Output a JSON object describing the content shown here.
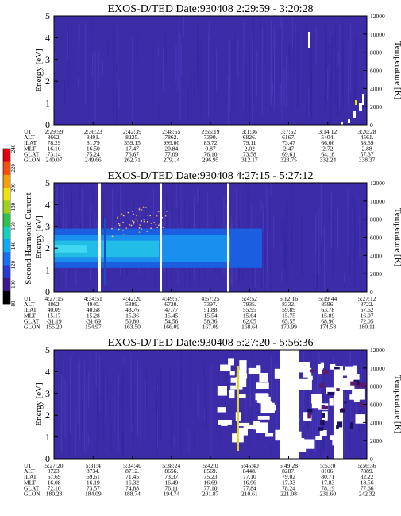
{
  "chart_data": [
    {
      "type": "heatmap",
      "title": "EXOS-D/TED   Date:930408   2:29:59 - 3:20:28",
      "ylabel": "Energy [eV]",
      "ylabel_right": "Temperature [K]",
      "ylim": [
        0,
        5
      ],
      "yticks": [
        "0",
        "1",
        "2",
        "3",
        "4",
        "5"
      ],
      "ylim_right": [
        0,
        12000
      ],
      "yticks_right": [
        "0",
        "2000",
        "4000",
        "6000",
        "8000",
        "10000",
        "12000"
      ],
      "background_color": "#3c2ca8",
      "table_rows": [
        {
          "name": "UT",
          "values": [
            "2:29:59",
            "2:36:23",
            "2:42:39",
            "2:48:55",
            "2:55:19",
            "3:1:36",
            "3:7:52",
            "3:14:12",
            "3:20:28"
          ]
        },
        {
          "name": "ALT",
          "values": [
            "8662.",
            "8491.",
            "8225.",
            "7862.",
            "7390.",
            "6826.",
            "6167.",
            "5404.",
            "4561."
          ]
        },
        {
          "name": "ILAT",
          "values": [
            "78.29",
            "81.79",
            "359.15",
            "999.00",
            "83.72",
            "79.11",
            "73.47",
            "66.66",
            "58.59"
          ]
        },
        {
          "name": "MLT",
          "values": [
            "16.10",
            "16.50",
            "17.47",
            "20.84",
            "0.87",
            "2.02",
            "2.47",
            "2.72",
            "2.88"
          ]
        },
        {
          "name": "GLAT",
          "values": [
            "73.14",
            "75.24",
            "76.67",
            "77.09",
            "76.10",
            "73.58",
            "69.61",
            "64.18",
            "57.37"
          ]
        },
        {
          "name": "GLON",
          "values": [
            "240.07",
            "249.66",
            "262.71",
            "279.14",
            "296.95",
            "312.17",
            "323.75",
            "332.24",
            "338.37"
          ]
        }
      ]
    },
    {
      "type": "heatmap",
      "title": "EXOS-D/TED   Date:930408   4:27:15 - 5:27:12",
      "ylabel": "Energy [eV]",
      "ylabel_right": "Temperature [K]",
      "ylim": [
        0,
        5
      ],
      "yticks": [
        "0",
        "1",
        "2",
        "3",
        "4",
        "5"
      ],
      "ylim_right": [
        0,
        12000
      ],
      "yticks_right": [
        "0",
        "2000",
        "4000",
        "6000",
        "8000",
        "10000",
        "12000"
      ],
      "background_color": "#3c2ca8",
      "colorbar": {
        "label": "Second Harmonic Current",
        "ticks": [
          "80",
          "100",
          "120",
          "140",
          "160",
          "180",
          "200",
          "220",
          "240"
        ],
        "range": [
          80,
          240
        ]
      },
      "table_rows": [
        {
          "name": "UT",
          "values": [
            "4:27:15",
            "4:34:51",
            "4:42:20",
            "4:49:57",
            "4:57:25",
            "5:4:52",
            "5:12:16",
            "5:19:44",
            "5:27:12"
          ]
        },
        {
          "name": "ALT",
          "values": [
            "3862.",
            "4940.",
            "5889.",
            "6720.",
            "7397.",
            "7935.",
            "8332.",
            "8596.",
            "8722."
          ]
        },
        {
          "name": "ILAT",
          "values": [
            "40.09",
            "40.68",
            "43.76",
            "47.77",
            "51.88",
            "55.95",
            "59.89",
            "63.78",
            "67.62"
          ]
        },
        {
          "name": "MLT",
          "values": [
            "15.17",
            "15.28",
            "15.36",
            "15.45",
            "15.54",
            "15.64",
            "15.75",
            "15.89",
            "16.07"
          ]
        },
        {
          "name": "GLAT",
          "values": [
            "-31.19",
            "-31.69",
            "50.80",
            "54.56",
            "58.36",
            "62.05",
            "65.55",
            "68.90",
            "72.05"
          ]
        },
        {
          "name": "GLON",
          "values": [
            "155.20",
            "154.97",
            "163.50",
            "166.09",
            "167.09",
            "168.64",
            "170.99",
            "174.58",
            "180.11"
          ]
        }
      ]
    },
    {
      "type": "heatmap",
      "title": "EXOS-D/TED   Date:930408   5:27:20 - 5:56:36",
      "ylabel": "Energy [eV]",
      "ylabel_right": "Temperature [K]",
      "ylim": [
        0,
        5
      ],
      "yticks": [
        "0",
        "1",
        "2",
        "3",
        "4",
        "5"
      ],
      "ylim_right": [
        0,
        12000
      ],
      "yticks_right": [
        "0",
        "2000",
        "4000",
        "6000",
        "8000",
        "10000",
        "12000"
      ],
      "background_color": "#3c2ca8",
      "table_rows": [
        {
          "name": "UT",
          "values": [
            "5:27:20",
            "5:31:4",
            "5:34:40",
            "5:38:24",
            "5:42:0",
            "5:45:40",
            "5:49:28",
            "5:53:0",
            "5:56:36"
          ]
        },
        {
          "name": "ALT",
          "values": [
            "8723.",
            "8734.",
            "8712.",
            "8656.",
            "8569.",
            "8448.",
            "8287.",
            "8106.",
            "7889."
          ]
        },
        {
          "name": "ILAT",
          "values": [
            "67.69",
            "69.61",
            "71.45",
            "73.37",
            "75.23",
            "77.10",
            "79.02",
            "80.71",
            "82.22"
          ]
        },
        {
          "name": "MLT",
          "values": [
            "16.08",
            "16.19",
            "16.32",
            "16.49",
            "16.69",
            "16.96",
            "17.33",
            "17.83",
            "18.56"
          ]
        },
        {
          "name": "GLAT",
          "values": [
            "72.10",
            "73.57",
            "74.88",
            "76.11",
            "77.10",
            "77.84",
            "78.24",
            "78.19",
            "77.66"
          ]
        },
        {
          "name": "GLON",
          "values": [
            "180.23",
            "184.09",
            "188.74",
            "194.74",
            "201.87",
            "210.61",
            "221.08",
            "231.60",
            "242.32"
          ]
        }
      ]
    }
  ]
}
